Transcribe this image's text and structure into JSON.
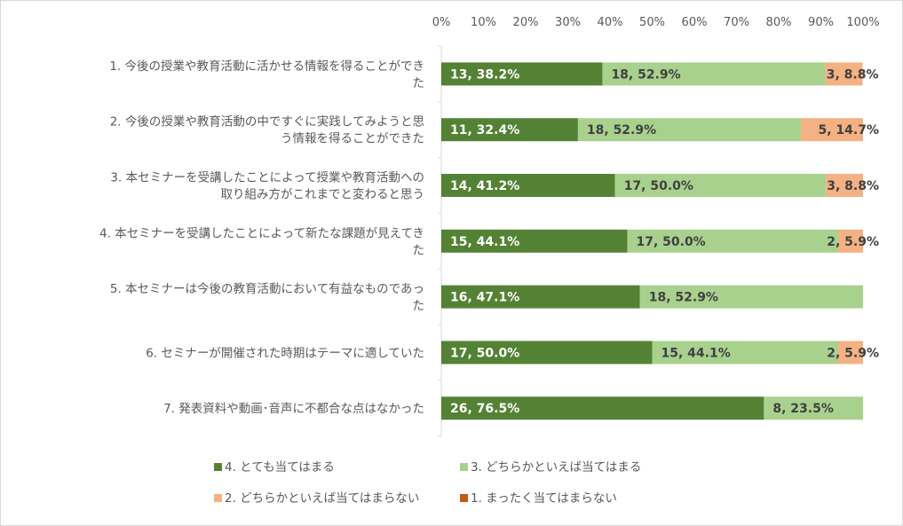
{
  "chart_data": {
    "type": "bar",
    "orientation": "horizontal",
    "stacked": "percent",
    "xlim": [
      0,
      100
    ],
    "x_ticks": [
      "0%",
      "10%",
      "20%",
      "30%",
      "40%",
      "50%",
      "60%",
      "70%",
      "80%",
      "90%",
      "100%"
    ],
    "grid": false,
    "legend_position": "bottom",
    "categories": [
      {
        "lines": [
          "1. 今後の授業や教育活動に活かせる情報を得ることができ",
          "た"
        ]
      },
      {
        "lines": [
          "2. 今後の授業や教育活動の中ですぐに実践してみようと思",
          "う情報を得ることができた"
        ]
      },
      {
        "lines": [
          "3. 本セミナーを受講したことによって授業や教育活動への",
          "取り組み方がこれまでと変わると思う"
        ]
      },
      {
        "lines": [
          "4. 本セミナーを受講したことによって新たな課題が見えてき",
          "た"
        ]
      },
      {
        "lines": [
          "5. 本セミナーは今後の教育活動において有益なものであっ",
          "た"
        ]
      },
      {
        "lines": [
          "6. セミナーが開催された時期はテーマに適していた"
        ]
      },
      {
        "lines": [
          "7. 発表資料や動画･音声に不都合な点はなかった"
        ]
      }
    ],
    "series": [
      {
        "name": "4. とても当てはまる",
        "color": "#548235",
        "label_color": "#ffffff",
        "counts": [
          13,
          11,
          14,
          15,
          16,
          17,
          26
        ],
        "values": [
          38.2,
          32.4,
          41.2,
          44.1,
          47.1,
          50.0,
          76.5
        ],
        "labels": [
          "13, 38.2%",
          "11, 32.4%",
          "14, 41.2%",
          "15, 44.1%",
          "16, 47.1%",
          "17, 50.0%",
          "26, 76.5%"
        ]
      },
      {
        "name": "3. どちらかといえば当てはまる",
        "color": "#a9d18e",
        "label_color": "#404040",
        "counts": [
          18,
          18,
          17,
          17,
          18,
          15,
          8
        ],
        "values": [
          52.9,
          52.9,
          50.0,
          50.0,
          52.9,
          44.1,
          23.5
        ],
        "labels": [
          "18, 52.9%",
          "18, 52.9%",
          "17, 50.0%",
          "17, 50.0%",
          "18, 52.9%",
          "15, 44.1%",
          "8, 23.5%"
        ]
      },
      {
        "name": "2. どちらかといえば当てはまらない",
        "color": "#f4b183",
        "label_color": "#404040",
        "counts": [
          3,
          5,
          3,
          2,
          0,
          2,
          0
        ],
        "values": [
          8.8,
          14.7,
          8.8,
          5.9,
          0,
          5.9,
          0
        ],
        "labels": [
          "3, 8.8%",
          "5, 14.7%",
          "3, 8.8%",
          "2, 5.9%",
          "",
          "2, 5.9%",
          ""
        ]
      },
      {
        "name": "1. まったく当てはまらない",
        "color": "#c55a11",
        "label_color": "#404040",
        "counts": [
          0,
          0,
          0,
          0,
          0,
          0,
          0
        ],
        "values": [
          0,
          0,
          0,
          0,
          0,
          0,
          0
        ],
        "labels": [
          "",
          "",
          "",
          "",
          "",
          "",
          ""
        ]
      }
    ]
  }
}
